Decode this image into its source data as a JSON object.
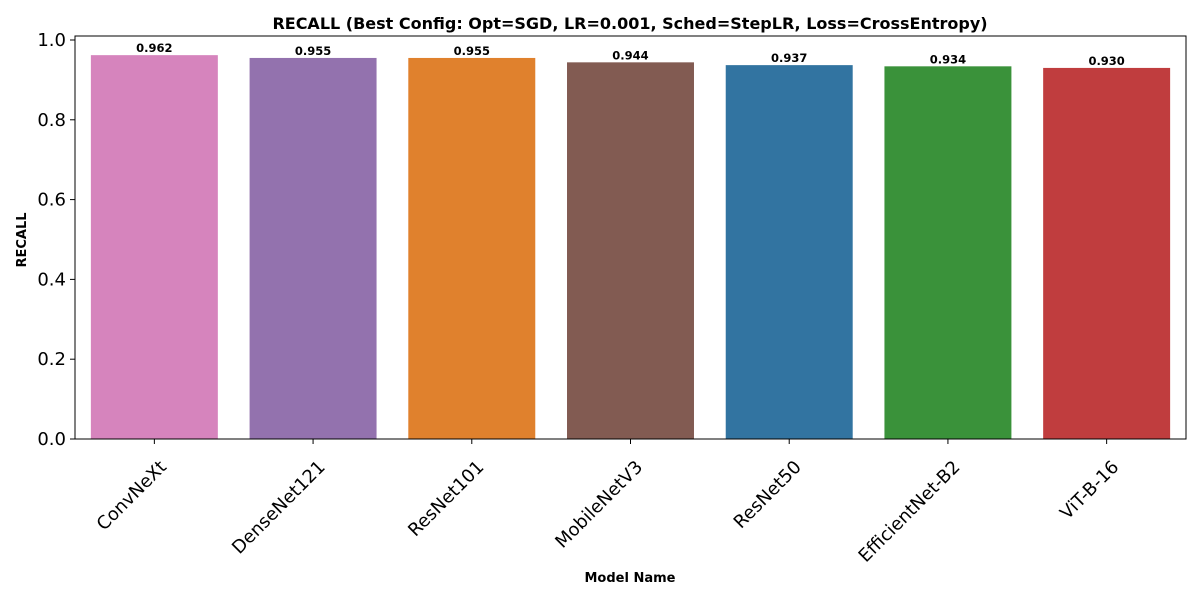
{
  "chart_data": {
    "type": "bar",
    "title": "RECALL (Best Config: Opt=SGD, LR=0.001, Sched=StepLR, Loss=CrossEntropy)",
    "xlabel": "Model Name",
    "ylabel": "RECALL",
    "categories": [
      "ConvNeXt",
      "DenseNet121",
      "ResNet101",
      "MobileNetV3",
      "ResNet50",
      "EfficientNet-B2",
      "ViT-B-16"
    ],
    "values": [
      0.962,
      0.955,
      0.955,
      0.944,
      0.937,
      0.934,
      0.93
    ],
    "value_labels": [
      "0.962",
      "0.955",
      "0.955",
      "0.944",
      "0.937",
      "0.934",
      "0.930"
    ],
    "colors": [
      "#d684bd",
      "#9372ae",
      "#e0812d",
      "#825b52",
      "#3274a1",
      "#3a923a",
      "#c03d3e"
    ],
    "ylim": [
      0,
      1.01
    ],
    "yticks": [
      0.0,
      0.2,
      0.4,
      0.6,
      0.8,
      1.0
    ],
    "ytick_labels": [
      "0.0",
      "0.2",
      "0.4",
      "0.6",
      "0.8",
      "1.0"
    ],
    "grid": false,
    "legend": "none"
  }
}
